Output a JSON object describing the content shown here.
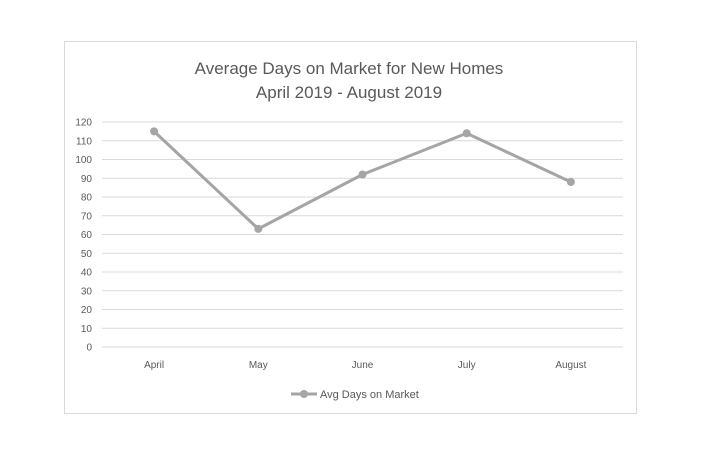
{
  "chart_data": {
    "type": "line",
    "title": "Average Days on Market for New Homes",
    "subtitle": "April 2019 - August 2019",
    "categories": [
      "April",
      "May",
      "June",
      "July",
      "August"
    ],
    "series": [
      {
        "name": "Avg Days on Market",
        "values": [
          115,
          63,
          92,
          114,
          88
        ],
        "color": "#a5a5a5"
      }
    ],
    "ylim": [
      0,
      120
    ],
    "y_ticks": [
      "0",
      "10",
      "20",
      "30",
      "40",
      "50",
      "60",
      "70",
      "80",
      "90",
      "100",
      "110",
      "120"
    ],
    "grid": true,
    "legend_position": "bottom",
    "gridline_color": "#d9d9d9",
    "text_color": "#595959"
  }
}
